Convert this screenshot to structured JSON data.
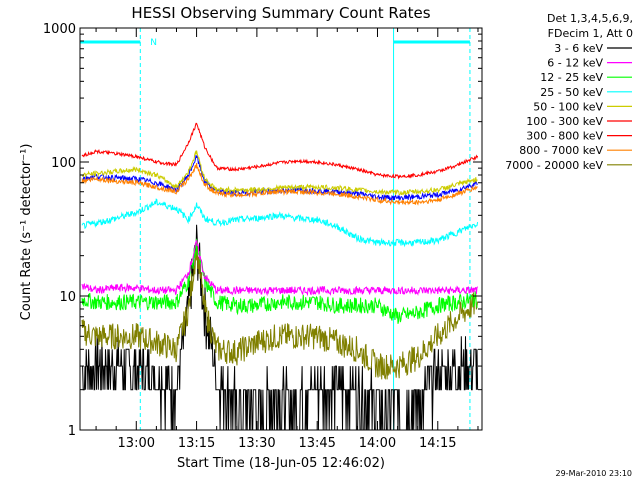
{
  "chart_data": {
    "type": "line",
    "title": "HESSI Observing Summary Count Rates",
    "xlabel": "Start Time (18-Jun-05 12:46:02)",
    "ylabel": "Count Rate (s⁻¹ detector⁻¹)",
    "yscale": "log",
    "ylim": [
      1,
      1000
    ],
    "xlim": [
      "12:46",
      "14:26"
    ],
    "x_ticks": [
      "13:00",
      "13:15",
      "13:30",
      "13:45",
      "14:00",
      "14:15"
    ],
    "y_ticks": [
      "1",
      "10",
      "100",
      "1000"
    ],
    "legend_header": [
      "Det 1,3,4,5,6,9,",
      "FDecim 1, Att 0"
    ],
    "annotation_n": "N",
    "footer": "29-Mar-2010 23:10",
    "x": [
      "12:46",
      "12:50",
      "12:55",
      "13:00",
      "13:05",
      "13:10",
      "13:13",
      "13:15",
      "13:17",
      "13:20",
      "13:25",
      "13:30",
      "13:35",
      "13:40",
      "13:45",
      "13:50",
      "13:55",
      "14:00",
      "14:05",
      "14:10",
      "14:15",
      "14:20",
      "14:25"
    ],
    "series": [
      {
        "name": "3 - 6 keV",
        "color": "#000000",
        "values": [
          2.5,
          3,
          3,
          2.8,
          2.5,
          2,
          8,
          24,
          8,
          2.5,
          1.6,
          1.5,
          1.8,
          1.6,
          2,
          2,
          2,
          1.6,
          1.5,
          1.6,
          2.5,
          3,
          3
        ]
      },
      {
        "name": "6 - 12 keV",
        "color": "#ff00ff",
        "values": [
          12,
          11,
          11.5,
          11.5,
          11,
          11,
          15,
          25,
          14,
          11,
          11,
          11,
          11,
          11,
          11,
          11,
          11,
          11,
          11,
          11,
          11,
          11,
          11
        ]
      },
      {
        "name": "12 - 25 keV",
        "color": "#00ff00",
        "values": [
          9.5,
          9,
          9,
          9,
          9,
          9,
          13,
          24,
          13,
          9,
          8.5,
          8.5,
          9,
          9,
          9,
          8.5,
          8.5,
          8.5,
          7,
          7.5,
          8.5,
          9,
          9.5
        ]
      },
      {
        "name": "25 - 50 keV",
        "color": "#00ffff",
        "values": [
          33,
          35,
          38,
          42,
          50,
          45,
          37,
          48,
          38,
          35,
          37,
          38,
          40,
          38,
          37,
          33,
          27,
          25,
          25,
          25,
          26,
          30,
          35
        ]
      },
      {
        "name": "50 - 100 keV",
        "color": "#cccc00",
        "values": [
          80,
          82,
          85,
          88,
          80,
          65,
          85,
          120,
          75,
          62,
          62,
          62,
          64,
          65,
          65,
          64,
          62,
          60,
          59,
          60,
          62,
          68,
          75
        ]
      },
      {
        "name": "100 - 300 keV",
        "color": "#ff0000",
        "values": [
          110,
          120,
          115,
          110,
          100,
          95,
          140,
          195,
          130,
          90,
          88,
          92,
          98,
          102,
          100,
          95,
          88,
          80,
          78,
          80,
          85,
          95,
          110
        ]
      },
      {
        "name": "300 - 800 keV",
        "color": "#ff0000",
        "values": [
          110,
          120,
          115,
          110,
          100,
          95,
          140,
          195,
          130,
          90,
          88,
          92,
          98,
          102,
          100,
          95,
          88,
          80,
          78,
          80,
          85,
          95,
          110
        ]
      },
      {
        "name": "800 - 7000 keV",
        "color": "#ff8000",
        "values": [
          72,
          75,
          72,
          70,
          65,
          60,
          75,
          95,
          68,
          58,
          57,
          58,
          60,
          60,
          59,
          58,
          55,
          52,
          50,
          50,
          52,
          58,
          65
        ]
      },
      {
        "name": "7000 - 20000 keV",
        "color": "#808000",
        "values": [
          5.5,
          5,
          5,
          5,
          4.5,
          4,
          8,
          23,
          8,
          4,
          3.8,
          4.5,
          5,
          5,
          5,
          4.5,
          4,
          3,
          3,
          3.5,
          5,
          7,
          9
        ]
      }
    ],
    "blue_overlay_series_values": [
      75,
      78,
      76,
      75,
      70,
      62,
      80,
      110,
      72,
      60,
      59,
      60,
      61,
      62,
      61,
      60,
      58,
      55,
      54,
      55,
      57,
      62,
      70
    ],
    "night_markers": [
      "12:46",
      "13:01",
      "14:04",
      "14:23"
    ],
    "grid": false,
    "legend_placement": "right"
  }
}
